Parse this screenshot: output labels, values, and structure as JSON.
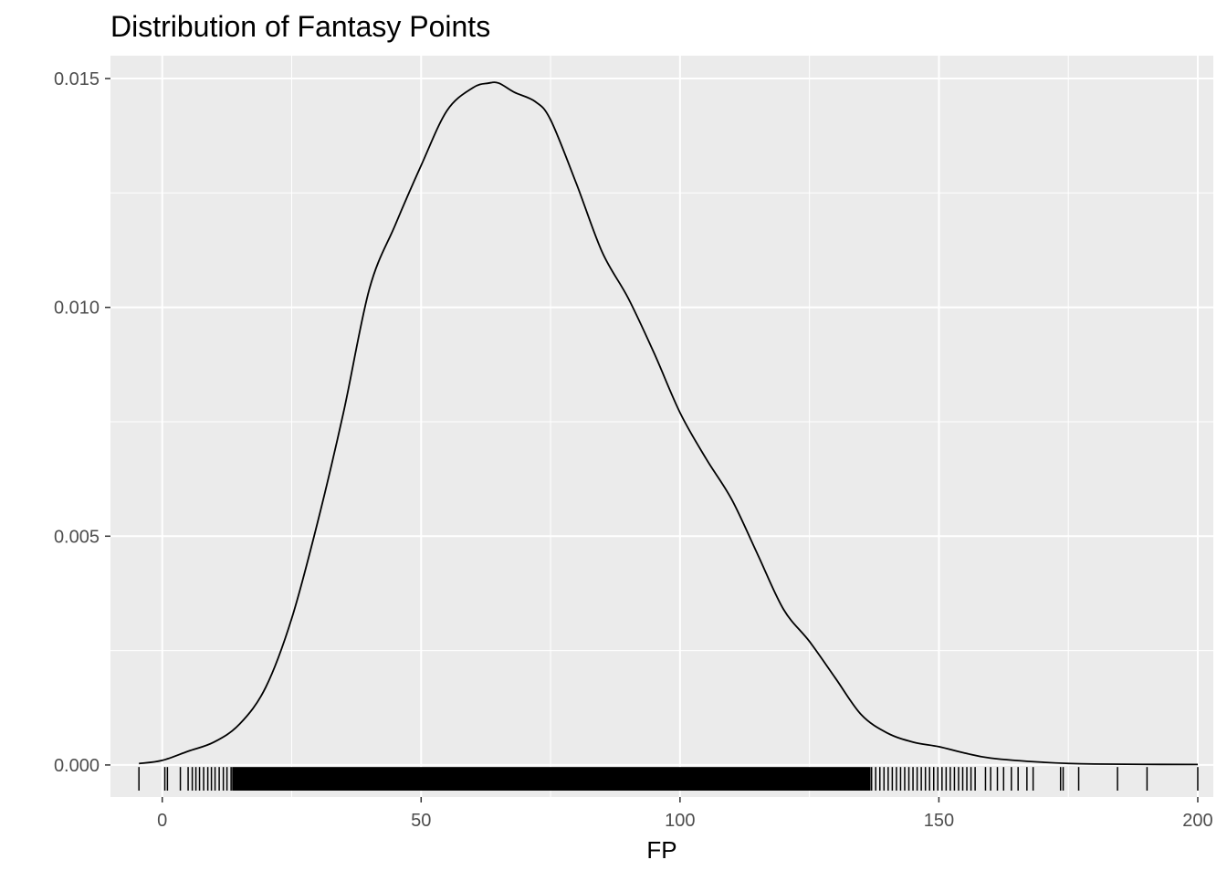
{
  "chart_data": {
    "type": "density",
    "title": "Distribution of Fantasy Points",
    "xlabel": "FP",
    "ylabel": "",
    "xlim": [
      -10,
      203
    ],
    "ylim": [
      -0.0007,
      0.0155
    ],
    "x_ticks": [
      0,
      50,
      100,
      150,
      200
    ],
    "x_tick_labels": [
      "0",
      "50",
      "100",
      "150",
      "200"
    ],
    "y_ticks": [
      0.0,
      0.005,
      0.01,
      0.015
    ],
    "y_tick_labels": [
      "0.000",
      "0.005",
      "0.010",
      "0.015"
    ],
    "grid": true,
    "series": [
      {
        "name": "density",
        "x": [
          -4.5,
          0,
          5,
          10,
          15,
          20,
          25,
          30,
          35,
          40,
          45,
          50,
          55,
          60,
          63,
          65,
          68,
          72,
          75,
          80,
          85,
          90,
          95,
          100,
          105,
          110,
          115,
          120,
          125,
          130,
          135,
          140,
          145,
          150,
          155,
          160,
          170,
          180,
          200
        ],
        "y": [
          3e-05,
          0.0001,
          0.0003,
          0.0005,
          0.0009,
          0.0017,
          0.0032,
          0.0053,
          0.0077,
          0.0104,
          0.0118,
          0.0131,
          0.0143,
          0.0148,
          0.0149,
          0.0149,
          0.0147,
          0.0145,
          0.0141,
          0.0127,
          0.0112,
          0.0102,
          0.009,
          0.0077,
          0.0067,
          0.0058,
          0.0046,
          0.0034,
          0.0027,
          0.0019,
          0.0011,
          0.0007,
          0.0005,
          0.0004,
          0.00026,
          0.00015,
          6e-05,
          2e-05,
          1e-05
        ]
      }
    ],
    "rug_ticks": [
      -4.5,
      0.5,
      1,
      3.5,
      5,
      5.8,
      6.5,
      7.2,
      8,
      8.8,
      9.5,
      10.2,
      11,
      11.8,
      12.5,
      13.3,
      137,
      137.8,
      138.6,
      139.4,
      140.2,
      141,
      141.8,
      142.6,
      143.4,
      144.2,
      145,
      145.8,
      146.6,
      147.4,
      148.2,
      149,
      149.8,
      150.6,
      151.4,
      152.2,
      153,
      153.8,
      154.6,
      155.4,
      156.2,
      157,
      159,
      160,
      161.3,
      162.5,
      164,
      165.3,
      167,
      168.2,
      173.5,
      174,
      177,
      184.5,
      190.2,
      200
    ],
    "rug_dense_range": [
      13.5,
      136.8
    ]
  }
}
